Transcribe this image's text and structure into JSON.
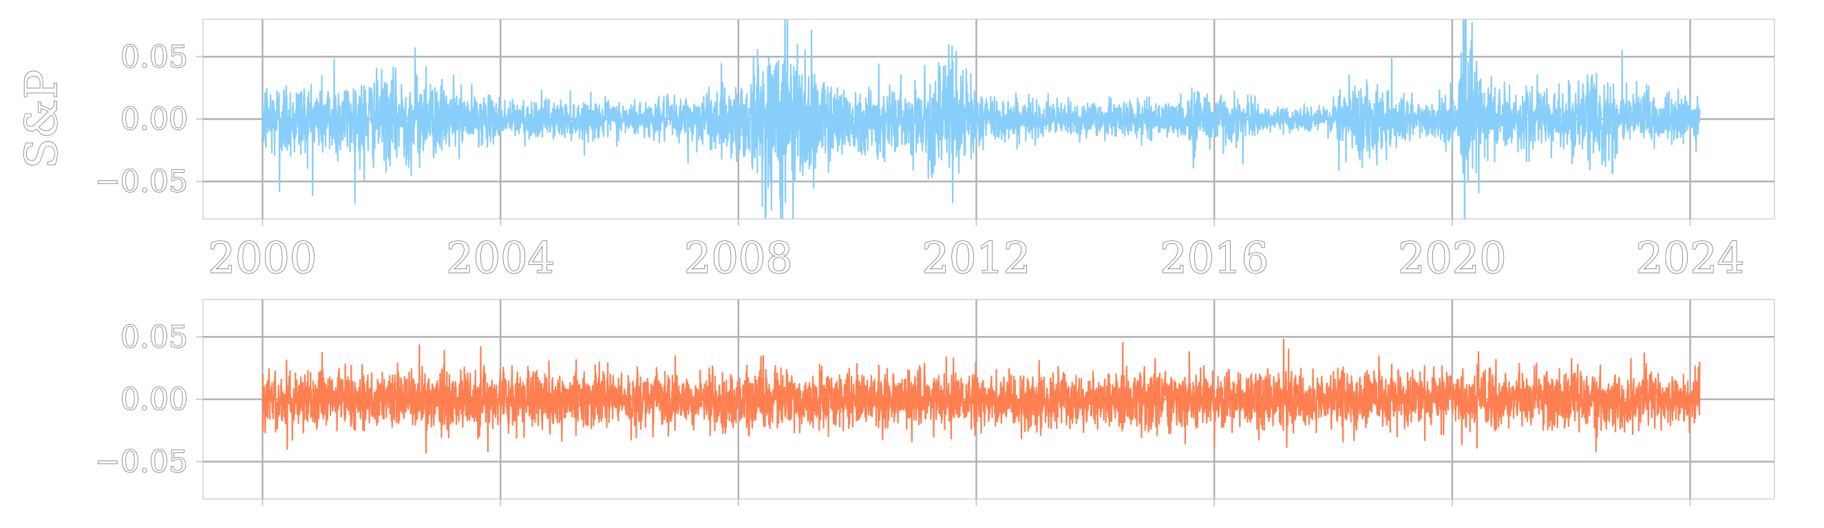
{
  "chart_data": [
    {
      "type": "line",
      "title": "",
      "ylabel": "S&P",
      "xlabel": "",
      "xlim": [
        "1999-01-01",
        "2025-06-01"
      ],
      "ylim": [
        -0.08,
        0.08
      ],
      "yticks": [
        -0.05,
        0.0,
        0.05
      ],
      "ytick_labels": [
        "−0.05",
        "0.00",
        "0.05"
      ],
      "xticks": [
        "2000",
        "2004",
        "2008",
        "2012",
        "2016",
        "2020",
        "2024"
      ],
      "xtick_labels_visible": true,
      "grid": true,
      "color": "#87CEFA",
      "series": [
        {
          "x_range": [
            "2000-01-03",
            "2024-02-29"
          ],
          "description_points": [
            [
              "2000-01-03",
              0.012
            ],
            [
              "2000-04-14",
              -0.058
            ],
            [
              "2001-03-15",
              0.048
            ],
            [
              "2001-09-17",
              -0.049
            ],
            [
              "2002-07-24",
              0.057
            ],
            [
              "2002-10-01",
              0.042
            ],
            [
              "2003-03-17",
              0.035
            ],
            [
              "2005-06-01",
              0.012
            ],
            [
              "2007-02-27",
              -0.035
            ],
            [
              "2008-09-29",
              -0.088
            ],
            [
              "2008-10-13",
              0.11
            ],
            [
              "2008-10-28",
              0.107
            ],
            [
              "2008-12-01",
              -0.089
            ],
            [
              "2009-03-23",
              0.071
            ],
            [
              "2010-05-06",
              -0.032
            ],
            [
              "2010-05-10",
              0.044
            ],
            [
              "2011-08-08",
              -0.067
            ],
            [
              "2011-08-09",
              0.046
            ],
            [
              "2015-08-24",
              -0.039
            ],
            [
              "2016-06-24",
              -0.036
            ],
            [
              "2018-02-05",
              -0.041
            ],
            [
              "2018-12-26",
              0.05
            ],
            [
              "2020-03-16",
              -0.12
            ],
            [
              "2020-03-24",
              0.094
            ],
            [
              "2020-06-11",
              -0.059
            ],
            [
              "2022-11-10",
              0.055
            ],
            [
              "2022-09-13",
              -0.043
            ],
            [
              "2024-02-29",
              0.008
            ]
          ]
        }
      ]
    },
    {
      "type": "line",
      "title": "",
      "ylabel": "",
      "xlabel": "",
      "xlim": [
        "1999-01-01",
        "2025-06-01"
      ],
      "ylim": [
        -0.08,
        0.08
      ],
      "yticks": [
        -0.05,
        0.0,
        0.05
      ],
      "ytick_labels": [
        "−0.05",
        "0.00",
        "0.05"
      ],
      "xticks": [
        "2000",
        "2004",
        "2008",
        "2012",
        "2016",
        "2020",
        "2024"
      ],
      "xtick_labels_visible": false,
      "grid": true,
      "color": "#FF7F50",
      "series": [
        {
          "x_range": [
            "2000-01-03",
            "2024-02-29"
          ],
          "description_points": [
            [
              "2000-01-03",
              0.02
            ],
            [
              "2000-06-01",
              -0.04
            ],
            [
              "2002-10-01",
              -0.043
            ],
            [
              "2003-09-01",
              0.042
            ],
            [
              "2003-10-15",
              -0.042
            ],
            [
              "2008-06-01",
              0.035
            ],
            [
              "2016-01-01",
              -0.038
            ],
            [
              "2017-03-01",
              0.048
            ],
            [
              "2017-04-01",
              0.04
            ],
            [
              "2020-06-01",
              -0.039
            ],
            [
              "2020-06-10",
              0.038
            ],
            [
              "2022-06-01",
              -0.042
            ],
            [
              "2024-02-29",
              0.03
            ]
          ]
        }
      ]
    }
  ]
}
